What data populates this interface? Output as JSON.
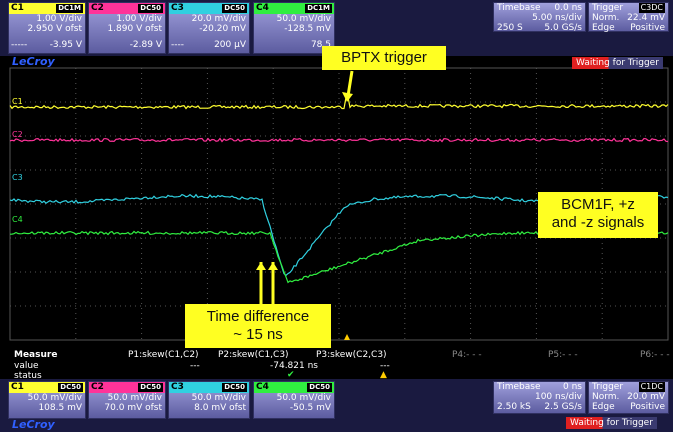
{
  "top_bar": {
    "channels": [
      {
        "label": "C1",
        "coupling": "DC1M",
        "scale": "1.00 V/div",
        "offset": "2.950 V ofst",
        "readout_prefix": "-----",
        "readout": "-3.95 V"
      },
      {
        "label": "C2",
        "coupling": "DC50",
        "scale": "1.00 V/div",
        "offset": "1.890 V ofst",
        "readout": "-2.89 V"
      },
      {
        "label": "C3",
        "coupling": "DC50",
        "scale": "20.0 mV/div",
        "offset": "-20.20 mV",
        "readout_prefix": "----",
        "readout": "200 µV"
      },
      {
        "label": "C4",
        "coupling": "DC1M",
        "scale": "50.0 mV/div",
        "offset": "-128.5 mV",
        "readout": "78.5"
      }
    ],
    "timebase": {
      "label": "Timebase",
      "delay": "0.0 ns",
      "scale": "5.00 ns/div",
      "samples": "250 S",
      "rate": "5.0 GS/s"
    },
    "trigger": {
      "label": "Trigger",
      "source": "C3",
      "coupling": "DC",
      "mode": "Norm.",
      "level": "22.4 mV",
      "type": "Edge",
      "slope": "Positive"
    },
    "logo": "LeCroy",
    "status": "Waiting for Trigger"
  },
  "trace_labels": [
    "C1",
    "C2",
    "C3",
    "C4"
  ],
  "annotations": {
    "trigger": "BPTX  trigger",
    "signals": [
      "BCM1F, +z",
      "and -z signals"
    ],
    "time_difference": [
      "Time difference",
      "~ 15 ns"
    ]
  },
  "measure": {
    "title": "Measure",
    "params": [
      "P1:skew(C1,C2)",
      "P2:skew(C1,C3)",
      "P3:skew(C2,C3)",
      "P4:- - -",
      "P5:- - -",
      "P6:- - -"
    ],
    "value_label": "value",
    "values": [
      "---",
      "-74.821 ns",
      "---"
    ],
    "status_label": "status",
    "status": [
      "✔",
      "▲"
    ]
  },
  "bottom_bar": {
    "channels": [
      {
        "label": "C1",
        "coupling": "DC50",
        "scale": "50.0 mV/div",
        "offset": "108.5 mV"
      },
      {
        "label": "C2",
        "coupling": "DC50",
        "scale": "50.0 mV/div",
        "offset": "70.0 mV ofst"
      },
      {
        "label": "C3",
        "coupling": "DC50",
        "scale": "50.0 mV/div",
        "offset": "8.0 mV ofst"
      },
      {
        "label": "C4",
        "coupling": "DC50",
        "scale": "50.0 mV/div",
        "offset": "-50.5 mV"
      }
    ],
    "timebase": {
      "label": "Timebase",
      "delay": "0 ns",
      "scale": "100 ns/div",
      "samples": "2.50 kS",
      "rate": "2.5 GS/s"
    },
    "trigger": {
      "label": "Trigger",
      "source": "C1",
      "coupling": "DC",
      "mode": "Norm.",
      "level": "20.0 mV",
      "type": "Edge",
      "slope": "Positive"
    },
    "logo": "LeCroy",
    "status": "Waiting for Trigger"
  }
}
